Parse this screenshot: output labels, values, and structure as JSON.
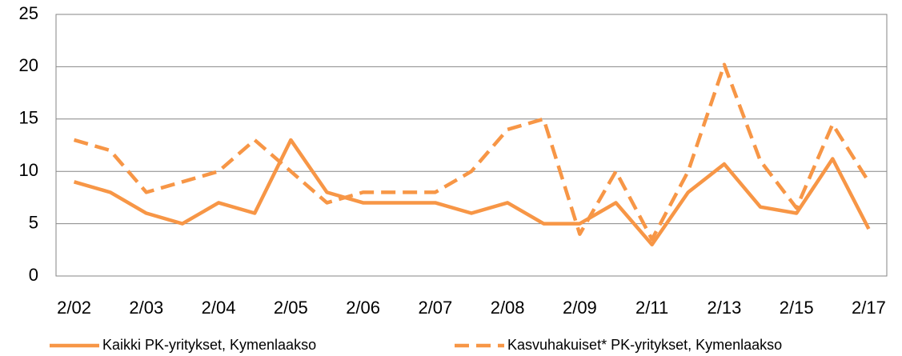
{
  "chart_data": {
    "type": "line",
    "categories": [
      "2/02",
      null,
      "2/03",
      null,
      "2/04",
      null,
      "2/05",
      null,
      "2/06",
      null,
      "2/07",
      null,
      "2/08",
      null,
      "2/09",
      null,
      "2/11",
      null,
      "2/13",
      null,
      "2/15",
      null,
      "2/17"
    ],
    "series": [
      {
        "name": "Kaikki PK-yritykset, Kymenlaakso",
        "color": "#f79646",
        "dash": false,
        "values": [
          9,
          8,
          6,
          5,
          7,
          6,
          13,
          8,
          7,
          7,
          7,
          6,
          7,
          5,
          5,
          7,
          3,
          8,
          10.7,
          6.6,
          6,
          11.2,
          4.5
        ]
      },
      {
        "name": "Kasvuhakuiset* PK-yritykset, Kymenlaakso",
        "color": "#f79646",
        "dash": true,
        "values": [
          13,
          12,
          8,
          9,
          10,
          13,
          10,
          7,
          8,
          8,
          8,
          10,
          14,
          15,
          4,
          10,
          3.5,
          10,
          20.2,
          11,
          6.5,
          14.5,
          9
        ]
      }
    ],
    "ylim": [
      0,
      25
    ],
    "yticks": [
      0,
      5,
      10,
      15,
      20,
      25
    ],
    "grid": true,
    "legend": "bottom"
  }
}
